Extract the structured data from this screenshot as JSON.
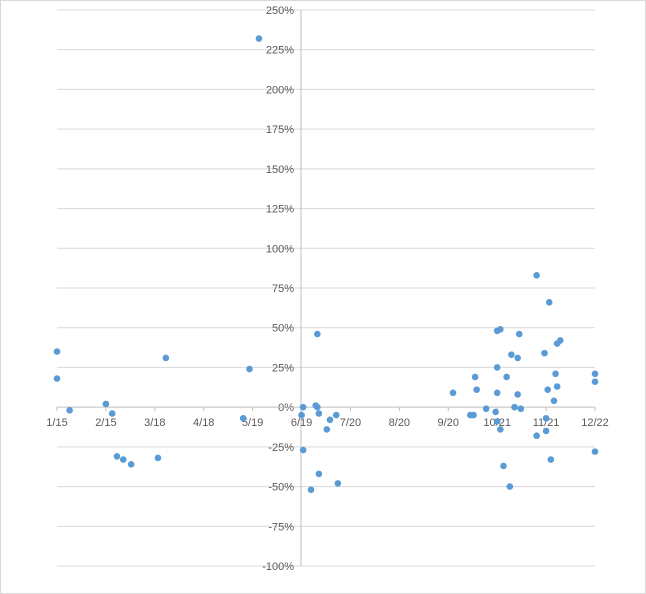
{
  "chart_data": {
    "type": "scatter",
    "title": "",
    "xlabel": "",
    "ylabel": "",
    "x_ticks": [
      "1/15",
      "2/15",
      "3/18",
      "4/18",
      "5/19",
      "6/19",
      "7/20",
      "8/20",
      "9/20",
      "10/21",
      "11/21",
      "12/22"
    ],
    "y_ticks": [
      "250%",
      "225%",
      "200%",
      "175%",
      "150%",
      "125%",
      "100%",
      "75%",
      "50%",
      "25%",
      "0%",
      "-25%",
      "-50%",
      "-75%",
      "-100%"
    ],
    "ylim": [
      -1.0,
      2.5
    ],
    "grid": true,
    "series": [
      {
        "color": "#5b9bd5",
        "points": [
          {
            "x": "1/15",
            "y": 0.35
          },
          {
            "x": "1/15",
            "y": 0.18
          },
          {
            "x": "1/23",
            "y": -0.02
          },
          {
            "x": "2/15",
            "y": 0.02
          },
          {
            "x": "2/19",
            "y": -0.04
          },
          {
            "x": "2/22",
            "y": -0.31
          },
          {
            "x": "2/26",
            "y": -0.33
          },
          {
            "x": "3/03",
            "y": -0.36
          },
          {
            "x": "3/20",
            "y": -0.32
          },
          {
            "x": "3/25",
            "y": 0.31
          },
          {
            "x": "5/13",
            "y": -0.07
          },
          {
            "x": "5/17",
            "y": 0.24
          },
          {
            "x": "5/23",
            "y": 2.32
          },
          {
            "x": "6/19",
            "y": -0.05
          },
          {
            "x": "6/20",
            "y": 0.0
          },
          {
            "x": "6/20",
            "y": -0.27
          },
          {
            "x": "6/25",
            "y": -0.52
          },
          {
            "x": "6/28",
            "y": 0.01
          },
          {
            "x": "6/29",
            "y": 0.46
          },
          {
            "x": "6/29",
            "y": 0.0
          },
          {
            "x": "6/30",
            "y": -0.42
          },
          {
            "x": "6/30",
            "y": -0.04
          },
          {
            "x": "7/05",
            "y": -0.14
          },
          {
            "x": "7/07",
            "y": -0.08
          },
          {
            "x": "7/11",
            "y": -0.05
          },
          {
            "x": "7/12",
            "y": -0.48
          },
          {
            "x": "9/23",
            "y": 0.09
          },
          {
            "x": "10/04",
            "y": -0.05
          },
          {
            "x": "10/06",
            "y": -0.05
          },
          {
            "x": "10/07",
            "y": 0.19
          },
          {
            "x": "10/08",
            "y": 0.11
          },
          {
            "x": "10/14",
            "y": -0.01
          },
          {
            "x": "10/20",
            "y": -0.03
          },
          {
            "x": "10/21",
            "y": -0.09
          },
          {
            "x": "10/21",
            "y": 0.48
          },
          {
            "x": "10/21",
            "y": 0.25
          },
          {
            "x": "10/21",
            "y": 0.09
          },
          {
            "x": "10/23",
            "y": -0.14
          },
          {
            "x": "10/23",
            "y": 0.49
          },
          {
            "x": "10/25",
            "y": -0.37
          },
          {
            "x": "10/27",
            "y": 0.19
          },
          {
            "x": "10/29",
            "y": -0.5
          },
          {
            "x": "10/30",
            "y": 0.33
          },
          {
            "x": "11/01",
            "y": 0.0
          },
          {
            "x": "11/03",
            "y": 0.31
          },
          {
            "x": "11/03",
            "y": 0.08
          },
          {
            "x": "11/04",
            "y": 0.46
          },
          {
            "x": "11/05",
            "y": -0.01
          },
          {
            "x": "11/15",
            "y": 0.83
          },
          {
            "x": "11/15",
            "y": -0.18
          },
          {
            "x": "11/20",
            "y": 0.34
          },
          {
            "x": "11/21",
            "y": -0.07
          },
          {
            "x": "11/21",
            "y": -0.15
          },
          {
            "x": "11/22",
            "y": 0.11
          },
          {
            "x": "11/23",
            "y": 0.66
          },
          {
            "x": "11/24",
            "y": -0.33
          },
          {
            "x": "11/26",
            "y": 0.04
          },
          {
            "x": "11/27",
            "y": 0.21
          },
          {
            "x": "11/28",
            "y": 0.4
          },
          {
            "x": "11/28",
            "y": 0.13
          },
          {
            "x": "11/30",
            "y": 0.42
          },
          {
            "x": "12/22",
            "y": 0.21
          },
          {
            "x": "12/22",
            "y": 0.16
          },
          {
            "x": "12/22",
            "y": -0.28
          }
        ]
      }
    ]
  }
}
